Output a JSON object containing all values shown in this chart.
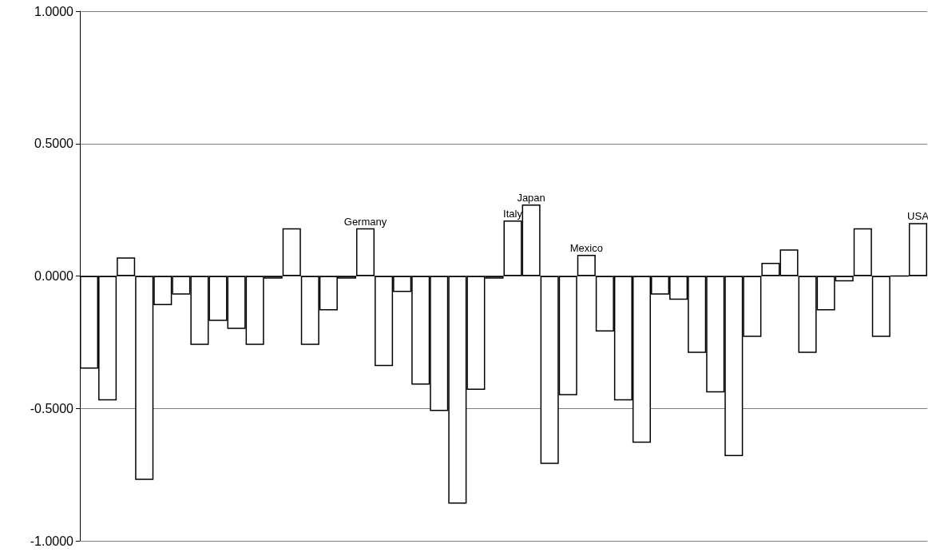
{
  "chart_data": {
    "type": "bar",
    "categories": [
      null,
      null,
      null,
      null,
      null,
      null,
      null,
      null,
      null,
      null,
      null,
      null,
      null,
      null,
      null,
      "Germany",
      null,
      null,
      null,
      null,
      null,
      null,
      null,
      "Italy",
      "Japan",
      null,
      null,
      "Mexico",
      null,
      null,
      null,
      null,
      null,
      null,
      null,
      null,
      null,
      null,
      null,
      null,
      null,
      null,
      null,
      null,
      null,
      "USA"
    ],
    "values": [
      -0.35,
      -0.47,
      0.07,
      -0.77,
      -0.11,
      -0.07,
      -0.26,
      -0.17,
      -0.2,
      -0.26,
      -0.01,
      0.18,
      -0.26,
      -0.13,
      -0.01,
      0.18,
      -0.34,
      -0.06,
      -0.41,
      -0.51,
      -0.86,
      -0.43,
      -0.01,
      0.21,
      0.27,
      -0.71,
      -0.45,
      0.08,
      -0.21,
      -0.47,
      -0.63,
      -0.07,
      -0.09,
      -0.29,
      -0.44,
      -0.68,
      -0.23,
      0.05,
      0.1,
      -0.29,
      -0.13,
      -0.02,
      0.18,
      -0.23,
      0.0,
      0.2
    ],
    "color": "#000000",
    "ylim": [
      -1,
      1
    ],
    "yticks": [
      {
        "value": -1,
        "label": "-1.0000"
      },
      {
        "value": -0.5,
        "label": "-0.5000"
      },
      {
        "value": 0,
        "label": "0.0000"
      },
      {
        "value": 0.5,
        "label": "0.5000"
      },
      {
        "value": 1,
        "label": "1.0000"
      }
    ],
    "grid": "y"
  }
}
